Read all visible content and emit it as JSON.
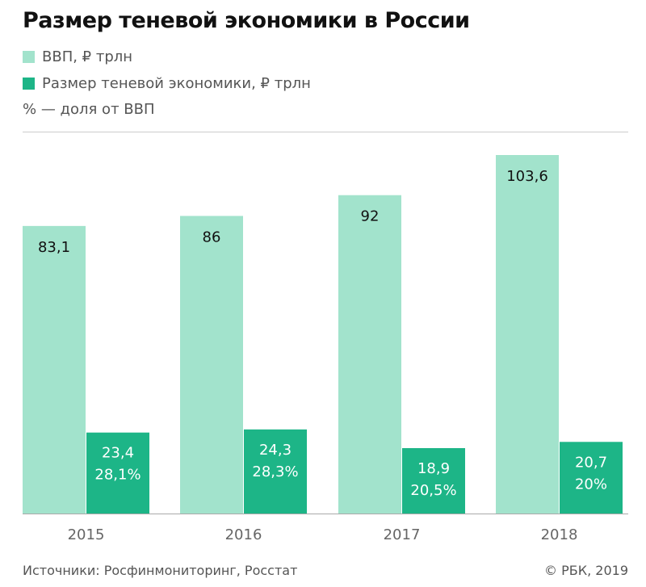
{
  "title": "Размер теневой экономики в России",
  "legend": {
    "gdp_label": "ВВП, ₽ трлн",
    "shadow_label": "Размер теневой экономики, ₽ трлн",
    "note": "% — доля от ВВП"
  },
  "colors": {
    "gdp": "#a2e3cc",
    "shadow": "#1db587",
    "text": "#111111",
    "shadow_text": "#ffffff"
  },
  "footer": {
    "source": "Источники: Росфинмониторинг, Росстат",
    "copyright": "© РБК, 2019"
  },
  "chart_data": {
    "type": "bar",
    "categories": [
      "2015",
      "2016",
      "2017",
      "2018"
    ],
    "series": [
      {
        "name": "ВВП, ₽ трлн",
        "values": [
          83.1,
          86,
          92,
          103.6
        ],
        "labels": [
          "83,1",
          "86",
          "92",
          "103,6"
        ]
      },
      {
        "name": "Размер теневой экономики, ₽ трлн",
        "values": [
          23.4,
          24.3,
          18.9,
          20.7
        ],
        "labels": [
          "23,4",
          "24,3",
          "18,9",
          "20,7"
        ],
        "share_labels": [
          "28,1%",
          "28,3%",
          "20,5%",
          "20%"
        ]
      }
    ],
    "ylim": [
      0,
      115
    ],
    "grid": false,
    "legend_position": "top-left"
  }
}
